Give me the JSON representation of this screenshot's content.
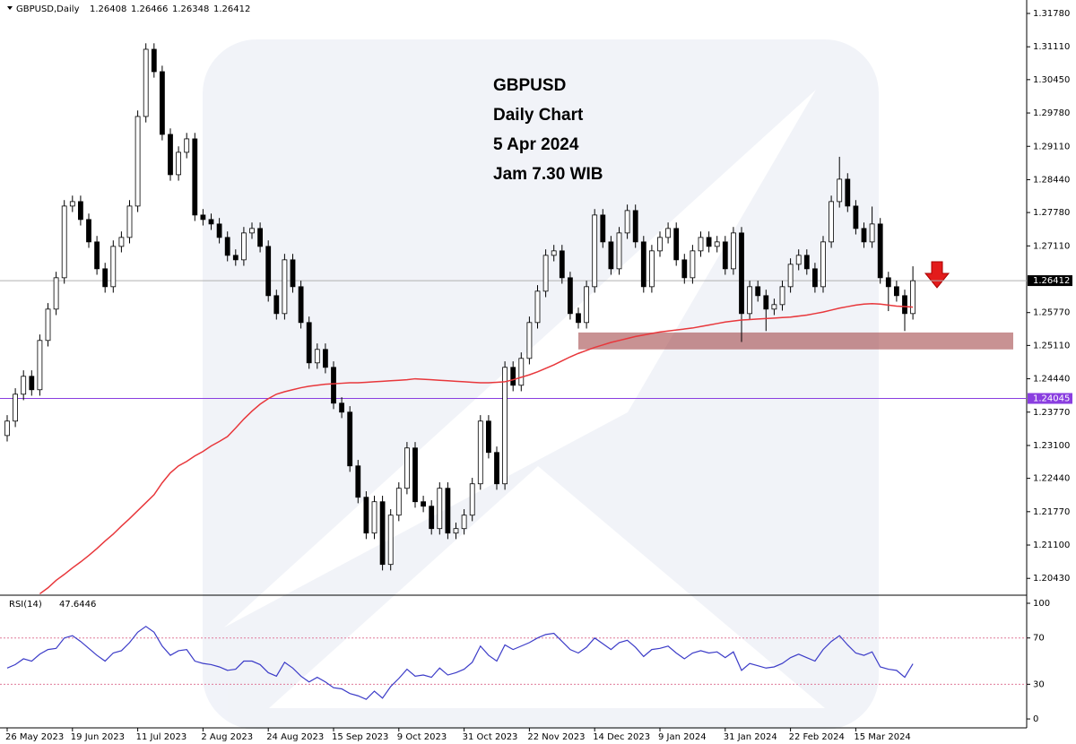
{
  "chart_data": {
    "type": "candlestick",
    "symbol": "GBPUSD,Daily",
    "header_ohlc": [
      1.26408,
      1.26466,
      1.26348,
      1.26412
    ],
    "annotation": [
      "GBPUSD",
      "Daily Chart",
      "5 Apr 2024",
      "Jam 7.30 WIB"
    ],
    "candles": [
      [
        1.233,
        1.2371,
        1.2318,
        1.2359
      ],
      [
        1.2359,
        1.2425,
        1.2347,
        1.2413
      ],
      [
        1.2413,
        1.2461,
        1.2401,
        1.2449
      ],
      [
        1.2449,
        1.2461,
        1.241,
        1.2422
      ],
      [
        1.2422,
        1.2533,
        1.241,
        1.2521
      ],
      [
        1.2521,
        1.2596,
        1.2509,
        1.2584
      ],
      [
        1.2584,
        1.2659,
        1.2572,
        1.2647
      ],
      [
        1.2647,
        1.2803,
        1.2635,
        1.2791
      ],
      [
        1.2791,
        1.2812,
        1.2779,
        1.28
      ],
      [
        1.28,
        1.2812,
        1.2752,
        1.2764
      ],
      [
        1.2764,
        1.2776,
        1.2707,
        1.2719
      ],
      [
        1.2719,
        1.2731,
        1.2653,
        1.2665
      ],
      [
        1.2665,
        1.2677,
        1.2617,
        1.2629
      ],
      [
        1.2629,
        1.2722,
        1.2617,
        1.271
      ],
      [
        1.271,
        1.274,
        1.2698,
        1.2728
      ],
      [
        1.2728,
        1.2803,
        1.2716,
        1.2791
      ],
      [
        1.2791,
        1.2983,
        1.2779,
        1.2971
      ],
      [
        1.2971,
        1.3118,
        1.2959,
        1.3106
      ],
      [
        1.3106,
        1.3118,
        1.3049,
        1.3061
      ],
      [
        1.3061,
        1.3073,
        1.2923,
        1.2935
      ],
      [
        1.2935,
        1.2947,
        1.2842,
        1.2854
      ],
      [
        1.2854,
        1.2911,
        1.2842,
        1.2899
      ],
      [
        1.2899,
        1.2938,
        1.2887,
        1.2926
      ],
      [
        1.2926,
        1.2938,
        1.2761,
        1.2773
      ],
      [
        1.2773,
        1.2785,
        1.2752,
        1.2764
      ],
      [
        1.2764,
        1.2776,
        1.2743,
        1.2755
      ],
      [
        1.2755,
        1.2767,
        1.2716,
        1.2728
      ],
      [
        1.2728,
        1.274,
        1.268,
        1.2692
      ],
      [
        1.2692,
        1.2704,
        1.2671,
        1.2683
      ],
      [
        1.2683,
        1.2749,
        1.2671,
        1.2737
      ],
      [
        1.2737,
        1.2758,
        1.2725,
        1.2746
      ],
      [
        1.2746,
        1.2758,
        1.2698,
        1.271
      ],
      [
        1.271,
        1.2722,
        1.2599,
        1.2611
      ],
      [
        1.2611,
        1.2623,
        1.2563,
        1.2575
      ],
      [
        1.2575,
        1.2695,
        1.2563,
        1.2683
      ],
      [
        1.2683,
        1.2695,
        1.2617,
        1.2629
      ],
      [
        1.2629,
        1.2641,
        1.2545,
        1.2557
      ],
      [
        1.2557,
        1.2569,
        1.2464,
        1.2476
      ],
      [
        1.2476,
        1.2515,
        1.2464,
        1.2503
      ],
      [
        1.2503,
        1.2515,
        1.2455,
        1.2467
      ],
      [
        1.2467,
        1.2479,
        1.2383,
        1.2395
      ],
      [
        1.2395,
        1.2407,
        1.2365,
        1.2377
      ],
      [
        1.2377,
        1.2389,
        1.2257,
        1.2269
      ],
      [
        1.2269,
        1.2281,
        1.2194,
        1.2206
      ],
      [
        1.2206,
        1.2218,
        1.2122,
        1.2134
      ],
      [
        1.2134,
        1.2209,
        1.2122,
        1.2197
      ],
      [
        1.2197,
        1.2209,
        1.2059,
        1.2071
      ],
      [
        1.2071,
        1.2182,
        1.2059,
        1.217
      ],
      [
        1.217,
        1.2236,
        1.2158,
        1.2224
      ],
      [
        1.2224,
        1.2317,
        1.2212,
        1.2305
      ],
      [
        1.2305,
        1.2317,
        1.2185,
        1.2197
      ],
      [
        1.2197,
        1.2209,
        1.2176,
        1.2188
      ],
      [
        1.2188,
        1.22,
        1.2131,
        1.2143
      ],
      [
        1.2143,
        1.2236,
        1.2131,
        1.2224
      ],
      [
        1.2224,
        1.2236,
        1.2122,
        1.2134
      ],
      [
        1.2134,
        1.2155,
        1.2122,
        1.2143
      ],
      [
        1.2143,
        1.2182,
        1.2131,
        1.217
      ],
      [
        1.217,
        1.2245,
        1.2158,
        1.2233
      ],
      [
        1.2233,
        1.2371,
        1.2221,
        1.2359
      ],
      [
        1.2359,
        1.2371,
        1.2284,
        1.2296
      ],
      [
        1.2296,
        1.2308,
        1.2221,
        1.2233
      ],
      [
        1.2233,
        1.2479,
        1.2221,
        1.2467
      ],
      [
        1.2467,
        1.2479,
        1.2419,
        1.2431
      ],
      [
        1.2431,
        1.2497,
        1.2419,
        1.2485
      ],
      [
        1.2485,
        1.2569,
        1.2473,
        1.2557
      ],
      [
        1.2557,
        1.2632,
        1.2545,
        1.262
      ],
      [
        1.262,
        1.2704,
        1.2608,
        1.2692
      ],
      [
        1.2692,
        1.2713,
        1.268,
        1.2701
      ],
      [
        1.2701,
        1.2713,
        1.2635,
        1.2647
      ],
      [
        1.2647,
        1.2659,
        1.2563,
        1.2575
      ],
      [
        1.2575,
        1.2587,
        1.2545,
        1.2557
      ],
      [
        1.2557,
        1.2641,
        1.2545,
        1.2629
      ],
      [
        1.2629,
        1.2785,
        1.2617,
        1.2773
      ],
      [
        1.2773,
        1.2785,
        1.2707,
        1.2719
      ],
      [
        1.2719,
        1.2731,
        1.2653,
        1.2665
      ],
      [
        1.2665,
        1.2749,
        1.2653,
        1.2737
      ],
      [
        1.2737,
        1.2794,
        1.2725,
        1.2782
      ],
      [
        1.2782,
        1.2794,
        1.2707,
        1.2719
      ],
      [
        1.2719,
        1.2731,
        1.2617,
        1.2629
      ],
      [
        1.2629,
        1.2713,
        1.2617,
        1.2701
      ],
      [
        1.2701,
        1.274,
        1.2689,
        1.2728
      ],
      [
        1.2728,
        1.2758,
        1.2716,
        1.2746
      ],
      [
        1.2746,
        1.2758,
        1.2671,
        1.2683
      ],
      [
        1.2683,
        1.2695,
        1.2635,
        1.2647
      ],
      [
        1.2647,
        1.2713,
        1.2635,
        1.2701
      ],
      [
        1.2701,
        1.274,
        1.2689,
        1.2728
      ],
      [
        1.2728,
        1.274,
        1.2698,
        1.271
      ],
      [
        1.271,
        1.2731,
        1.2698,
        1.2719
      ],
      [
        1.2719,
        1.2731,
        1.2653,
        1.2665
      ],
      [
        1.2665,
        1.2749,
        1.2653,
        1.2737
      ],
      [
        1.2737,
        1.2749,
        1.2518,
        1.2575
      ],
      [
        1.2575,
        1.2641,
        1.2563,
        1.2629
      ],
      [
        1.2629,
        1.2641,
        1.2599,
        1.2611
      ],
      [
        1.2611,
        1.2623,
        1.254,
        1.2584
      ],
      [
        1.2584,
        1.2605,
        1.2572,
        1.2593
      ],
      [
        1.2593,
        1.2641,
        1.2581,
        1.2629
      ],
      [
        1.2629,
        1.2686,
        1.2617,
        1.2674
      ],
      [
        1.2674,
        1.2704,
        1.2662,
        1.2692
      ],
      [
        1.2692,
        1.2704,
        1.2653,
        1.2665
      ],
      [
        1.2665,
        1.2677,
        1.2617,
        1.2629
      ],
      [
        1.2629,
        1.2731,
        1.2617,
        1.2719
      ],
      [
        1.2719,
        1.2812,
        1.2707,
        1.28
      ],
      [
        1.28,
        1.289,
        1.2788,
        1.2845
      ],
      [
        1.2845,
        1.2857,
        1.2779,
        1.2791
      ],
      [
        1.2791,
        1.2803,
        1.2734,
        1.2746
      ],
      [
        1.2746,
        1.2758,
        1.2707,
        1.2719
      ],
      [
        1.2719,
        1.279,
        1.2707,
        1.2755
      ],
      [
        1.2755,
        1.2767,
        1.2635,
        1.2647
      ],
      [
        1.2647,
        1.2659,
        1.258,
        1.2629
      ],
      [
        1.2629,
        1.2641,
        1.2599,
        1.2611
      ],
      [
        1.2611,
        1.2623,
        1.254,
        1.2575
      ],
      [
        1.2575,
        1.267,
        1.2563,
        1.2641
      ]
    ],
    "ma": {
      "color": "#e8373b",
      "values": [
        null,
        null,
        null,
        null,
        1.2012,
        1.2024,
        1.2039,
        1.2051,
        1.2064,
        1.2076,
        1.2089,
        1.2103,
        1.2118,
        1.2132,
        1.2148,
        1.2163,
        1.2179,
        1.2195,
        1.2211,
        1.2235,
        1.2255,
        1.2269,
        1.2278,
        1.2289,
        1.2298,
        1.2309,
        1.2318,
        1.2328,
        1.2345,
        1.2363,
        1.2379,
        1.2393,
        1.2404,
        1.2413,
        1.2418,
        1.2422,
        1.2426,
        1.2429,
        1.2431,
        1.2433,
        1.2434,
        1.2435,
        1.2436,
        1.2436,
        1.2437,
        1.2438,
        1.2439,
        1.244,
        1.2441,
        1.2442,
        1.2444,
        1.2443,
        1.2442,
        1.2441,
        1.244,
        1.2439,
        1.2438,
        1.2437,
        1.2436,
        1.2436,
        1.2437,
        1.2438,
        1.2442,
        1.2447,
        1.2452,
        1.2458,
        1.2465,
        1.2472,
        1.248,
        1.2488,
        1.2495,
        1.2501,
        1.2507,
        1.2512,
        1.2517,
        1.2521,
        1.2525,
        1.2529,
        1.2532,
        1.2535,
        1.2538,
        1.254,
        1.2542,
        1.2544,
        1.2546,
        1.2549,
        1.2552,
        1.2555,
        1.2558,
        1.256,
        1.2562,
        1.2563,
        1.2564,
        1.2565,
        1.2566,
        1.2567,
        1.2568,
        1.257,
        1.2572,
        1.2575,
        1.2578,
        1.2582,
        1.2586,
        1.2589,
        1.2592,
        1.2594,
        1.2595,
        1.2594,
        1.2592,
        1.259,
        1.2589,
        1.2588
      ]
    },
    "ylim": [
      1.2011,
      1.3205
    ],
    "yticks": [
      {
        "value": 1.3178,
        "label": "1.31780"
      },
      {
        "value": 1.3111,
        "label": "1.31110"
      },
      {
        "value": 1.3045,
        "label": "1.30450"
      },
      {
        "value": 1.2978,
        "label": "1.29780"
      },
      {
        "value": 1.2911,
        "label": "1.29110"
      },
      {
        "value": 1.2844,
        "label": "1.28440"
      },
      {
        "value": 1.2778,
        "label": "1.27780"
      },
      {
        "value": 1.2711,
        "label": "1.27110"
      },
      {
        "value": 1.2577,
        "label": "1.25770"
      },
      {
        "value": 1.2511,
        "label": "1.25110"
      },
      {
        "value": 1.2444,
        "label": "1.24440"
      },
      {
        "value": 1.2377,
        "label": "1.23770"
      },
      {
        "value": 1.231,
        "label": "1.23100"
      },
      {
        "value": 1.2244,
        "label": "1.22440"
      },
      {
        "value": 1.2177,
        "label": "1.21770"
      },
      {
        "value": 1.211,
        "label": "1.21100"
      },
      {
        "value": 1.2043,
        "label": "1.20430"
      }
    ],
    "hlines": [
      {
        "value": 1.26412,
        "color": "#b0b0b0",
        "label_bg": "#000000"
      },
      {
        "value": 1.24045,
        "color": "#8a3ee0",
        "label_bg": "#8a3ee0"
      }
    ],
    "zone": {
      "low": 1.2503,
      "high": 1.2537,
      "start_index": 70,
      "color": "#a3494b"
    },
    "x_labels": [
      {
        "index": 0,
        "label": "26 May 2023"
      },
      {
        "index": 8,
        "label": "19 Jun 2023"
      },
      {
        "index": 16,
        "label": "11 Jul 2023"
      },
      {
        "index": 24,
        "label": "2 Aug 2023"
      },
      {
        "index": 32,
        "label": "24 Aug 2023"
      },
      {
        "index": 40,
        "label": "15 Sep 2023"
      },
      {
        "index": 48,
        "label": "9 Oct 2023"
      },
      {
        "index": 56,
        "label": "31 Oct 2023"
      },
      {
        "index": 64,
        "label": "22 Nov 2023"
      },
      {
        "index": 72,
        "label": "14 Dec 2023"
      },
      {
        "index": 80,
        "label": "9 Jan 2024"
      },
      {
        "index": 88,
        "label": "31 Jan 2024"
      },
      {
        "index": 96,
        "label": "22 Feb 2024"
      },
      {
        "index": 104,
        "label": "15 Mar 2024"
      }
    ],
    "rsi": {
      "name": "RSI(14)",
      "current": 47.6446,
      "color": "#3c3cc8",
      "values": [
        44,
        47,
        52,
        50,
        56,
        60,
        61,
        70,
        72,
        67,
        61,
        55,
        50,
        57,
        59,
        66,
        75,
        80,
        75,
        63,
        55,
        59,
        60,
        50,
        48,
        47,
        45,
        42,
        43,
        50,
        50,
        47,
        40,
        37,
        49,
        44,
        37,
        32,
        36,
        32,
        27,
        26,
        22,
        20,
        17,
        24,
        18,
        28,
        35,
        43,
        37,
        38,
        36,
        44,
        38,
        40,
        43,
        49,
        63,
        55,
        50,
        64,
        60,
        63,
        66,
        70,
        73,
        74,
        67,
        60,
        57,
        62,
        70,
        65,
        60,
        66,
        68,
        62,
        54,
        60,
        61,
        63,
        57,
        52,
        57,
        59,
        57,
        58,
        53,
        58,
        42,
        48,
        46,
        44,
        45,
        48,
        53,
        56,
        53,
        50,
        60,
        67,
        72,
        64,
        57,
        55,
        58,
        45,
        43,
        42,
        36,
        47.6446
      ],
      "ylim": [
        -4.6,
        106.2
      ],
      "yticks": [
        100,
        70,
        30,
        0
      ],
      "levels": [
        70,
        30
      ],
      "level_color": "#e07a9a"
    }
  }
}
